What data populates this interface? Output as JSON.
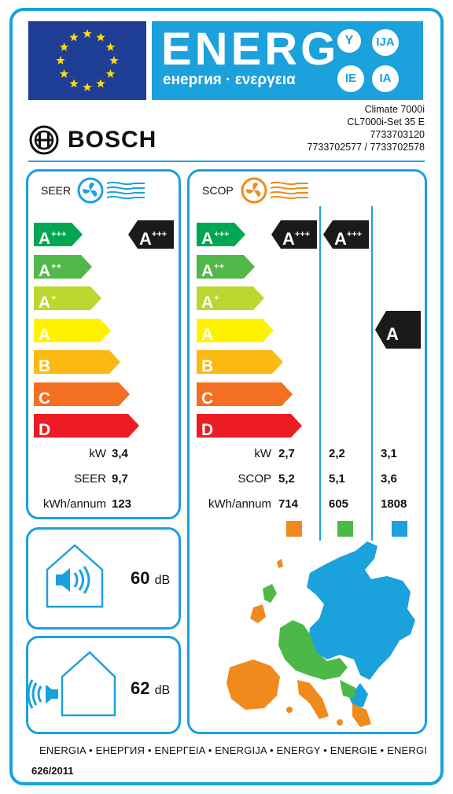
{
  "header": {
    "energy_word": "ENERG",
    "energy_subtitle": "енергия · ενεργεια",
    "lang_badges": [
      "Y",
      "IJA",
      "IE",
      "IA"
    ],
    "brand": "BOSCH",
    "model_lines": [
      "Climate 7000i",
      "CL7000i-Set 35 E",
      "7733703120",
      "7733702577 / 7733702578"
    ]
  },
  "colors": {
    "frame": "#1ba1dc",
    "eu_blue": "#1f3f97",
    "eu_star": "#ffde00",
    "zone_warm": "#f08a1c",
    "zone_average": "#4db848",
    "zone_cold": "#1ba1dc"
  },
  "classes": [
    {
      "letter": "A",
      "plus": "+++",
      "color": "#00a651"
    },
    {
      "letter": "A",
      "plus": "++",
      "color": "#50b848"
    },
    {
      "letter": "A",
      "plus": "+",
      "color": "#bed630"
    },
    {
      "letter": "A",
      "plus": "",
      "color": "#fff200"
    },
    {
      "letter": "B",
      "plus": "",
      "color": "#fcb813"
    },
    {
      "letter": "C",
      "plus": "",
      "color": "#f36f21"
    },
    {
      "letter": "D",
      "plus": "",
      "color": "#ed1c24"
    }
  ],
  "seer": {
    "label": "SEER",
    "rating_letter": "A",
    "rating_plus": "+++",
    "metrics": [
      {
        "label": "kW",
        "value": "3,4"
      },
      {
        "label": "SEER",
        "value": "9,7"
      },
      {
        "label": "kWh/annum",
        "value": "123"
      }
    ]
  },
  "scop": {
    "label": "SCOP",
    "zones": [
      {
        "rating_letter": "A",
        "rating_plus": "+++",
        "kw": "2,7",
        "scop": "5,2",
        "kwh": "714"
      },
      {
        "rating_letter": "A",
        "rating_plus": "+++",
        "kw": "2,2",
        "scop": "5,1",
        "kwh": "605"
      },
      {
        "rating_letter": "A",
        "rating_plus": "",
        "kw": "3,1",
        "scop": "3,6",
        "kwh": "1808"
      }
    ],
    "metric_labels": [
      "kW",
      "SCOP",
      "kWh/annum"
    ]
  },
  "noise": {
    "indoor_value": "60",
    "outdoor_value": "62",
    "unit": "dB"
  },
  "footer": {
    "languages": "ENERGIA • ЕНЕРГИЯ • ΕΝΕΡΓΕΙΑ • ENERGIJA • ENERGY • ENERGIE • ENERGI",
    "regulation": "626/2011"
  }
}
